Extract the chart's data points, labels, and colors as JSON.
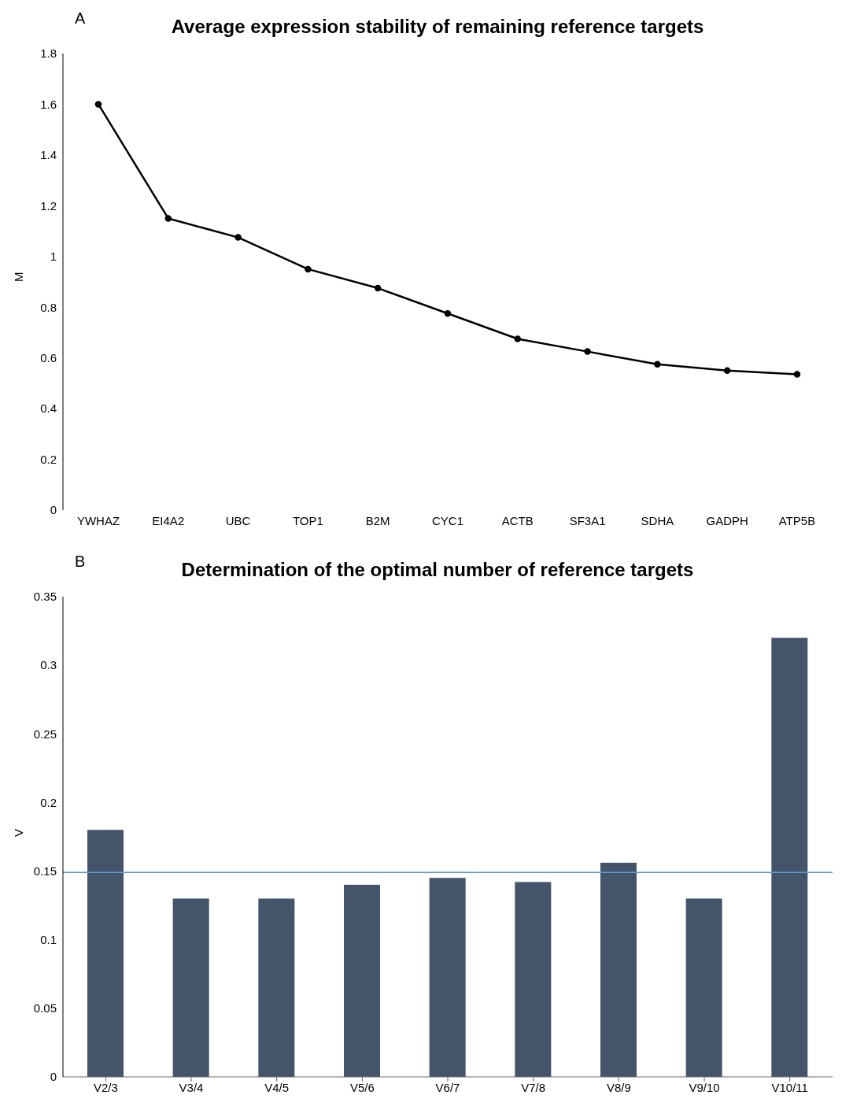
{
  "chart_data": [
    {
      "type": "line",
      "title": "Average expression stability of remaining reference targets",
      "ylabel": "M",
      "annotations": [
        "A"
      ],
      "categories": [
        "YWHAZ",
        "EI4A2",
        "UBC",
        "TOP1",
        "B2M",
        "CYC1",
        "ACTB",
        "SF3A1",
        "SDHA",
        "GADPH",
        "ATP5B"
      ],
      "values": [
        1.6,
        1.15,
        1.075,
        0.95,
        0.875,
        0.775,
        0.675,
        0.625,
        0.575,
        0.55,
        0.535
      ],
      "color": "#000000",
      "marker": "circle",
      "line_style": "solid",
      "ylim": [
        0,
        1.8
      ],
      "yticks": [
        0,
        0.2,
        0.4,
        0.6,
        0.8,
        1,
        1.2,
        1.4,
        1.6,
        1.8
      ],
      "grid": false,
      "legend": false
    },
    {
      "type": "bar",
      "title": "Determination of the optimal number of reference targets",
      "ylabel": "V",
      "annotations": [
        "B"
      ],
      "categories": [
        "V2/3",
        "V3/4",
        "V4/5",
        "V5/6",
        "V6/7",
        "V7/8",
        "V8/9",
        "V9/10",
        "V10/11"
      ],
      "values": [
        0.18,
        0.13,
        0.13,
        0.14,
        0.145,
        0.142,
        0.156,
        0.13,
        0.32
      ],
      "color": "#44546a",
      "ylim": [
        0,
        0.35
      ],
      "yticks": [
        0,
        0.05,
        0.1,
        0.15,
        0.2,
        0.25,
        0.3,
        0.35
      ],
      "grid": false,
      "legend": false,
      "ref_lines": [
        {
          "axis": "y",
          "value": 0.149,
          "color": "#5b9bd5"
        }
      ]
    }
  ]
}
